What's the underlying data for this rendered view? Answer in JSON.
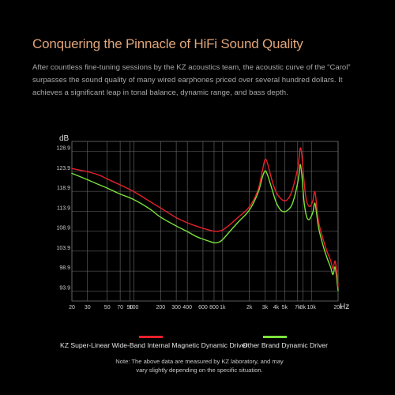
{
  "header": {
    "title": "Conquering the Pinnacle of HiFi Sound Quality",
    "description": "After countless fine-tuning sessions by the KZ acoustics team, the acoustic curve of the “Carol” surpasses the sound quality of many wired earphones priced over several hundred dollars. It achieves a significant leap in tonal balance, dynamic range, and bass depth."
  },
  "colors": {
    "background": "#000000",
    "title": "#e0a57a",
    "grid": "#6f6f6f",
    "series_kz": "#e8202a",
    "series_other": "#7be23a"
  },
  "chart_data": {
    "type": "line",
    "title": "",
    "xlabel": "Hz",
    "ylabel": "dB",
    "x_scale": "log",
    "xlim": [
      20,
      20000
    ],
    "ylim": [
      91.4,
      131.4
    ],
    "grid": true,
    "x_ticks": [
      20,
      30,
      50,
      70,
      90,
      100,
      200,
      300,
      400,
      600,
      800,
      1000,
      2000,
      3000,
      4000,
      5000,
      7000,
      8000,
      10000,
      20000
    ],
    "x_tick_labels": [
      "20",
      "30",
      "50",
      "70",
      "90",
      "100",
      "200",
      "300",
      "400",
      "600",
      "800",
      "1k",
      "2k",
      "3k",
      "4k",
      "5k",
      "7k",
      "8k",
      "10k",
      "20k"
    ],
    "y_ticks": [
      93.9,
      98.9,
      103.9,
      108.9,
      113.9,
      118.9,
      123.9,
      128.9
    ],
    "y_tick_labels": [
      "93.9",
      "98.9",
      "103.9",
      "108.9",
      "113.9",
      "118.9",
      "123.9",
      "128.9"
    ],
    "series": [
      {
        "name": "KZ Super-Linear Wide-Band Internal Magnetic Dynamic Driver",
        "color": "#e8202a",
        "x": [
          20,
          30,
          40,
          50,
          70,
          100,
          150,
          200,
          300,
          400,
          500,
          600,
          700,
          800,
          900,
          1000,
          1200,
          1500,
          2000,
          2500,
          2800,
          3000,
          3200,
          3600,
          4000,
          4500,
          5000,
          5500,
          6000,
          6500,
          7000,
          7300,
          7500,
          7800,
          8200,
          8700,
          9200,
          9800,
          10400,
          11000,
          12000,
          13500,
          15000,
          16500,
          17500,
          18500,
          19500,
          20000
        ],
        "y": [
          124.6,
          123.8,
          123.0,
          122.0,
          120.5,
          118.8,
          116.4,
          114.7,
          112.3,
          111.0,
          110.2,
          109.6,
          109.2,
          108.9,
          108.9,
          109.2,
          110.5,
          112.4,
          115.0,
          119.2,
          124.0,
          126.8,
          125.9,
          121.6,
          118.7,
          117.1,
          116.5,
          117.1,
          118.8,
          121.5,
          124.6,
          127.5,
          129.8,
          128.0,
          122.2,
          117.1,
          115.4,
          115.2,
          116.6,
          118.6,
          111.5,
          107.0,
          103.8,
          101.5,
          99.5,
          101.4,
          97.5,
          95.0
        ]
      },
      {
        "name": "Other Brand Dynamic Driver",
        "color": "#7be23a",
        "x": [
          20,
          30,
          40,
          50,
          70,
          100,
          150,
          200,
          300,
          400,
          500,
          600,
          700,
          800,
          900,
          1000,
          1200,
          1500,
          2000,
          2500,
          2800,
          3000,
          3200,
          3600,
          4000,
          4500,
          5000,
          5500,
          6000,
          6500,
          7000,
          7300,
          7500,
          7800,
          8200,
          8700,
          9200,
          9800,
          10400,
          11000,
          12000,
          13500,
          15000,
          16500,
          17500,
          18500,
          19500,
          20000
        ],
        "y": [
          123.4,
          121.8,
          120.6,
          119.7,
          118.2,
          116.8,
          114.5,
          112.4,
          110.2,
          108.8,
          107.6,
          106.9,
          106.4,
          106.0,
          106.1,
          106.8,
          108.8,
          111.2,
          114.2,
          118.5,
          122.4,
          124.0,
          123.0,
          119.4,
          116.2,
          114.2,
          113.8,
          114.3,
          115.4,
          117.8,
          121.0,
          123.6,
          125.6,
          123.0,
          117.0,
          113.1,
          111.8,
          112.3,
          113.7,
          115.8,
          110.0,
          105.4,
          102.2,
          99.8,
          98.0,
          99.9,
          96.0,
          94.0
        ]
      }
    ]
  },
  "legend": {
    "kz_label": "KZ Super-Linear Wide-Band Internal Magnetic Dynamic Driver",
    "other_label": "Other Brand Dynamic Driver"
  },
  "footnote": "Note: The above data are measured by KZ laboratory, and may vary slightly depending on the specific situation."
}
